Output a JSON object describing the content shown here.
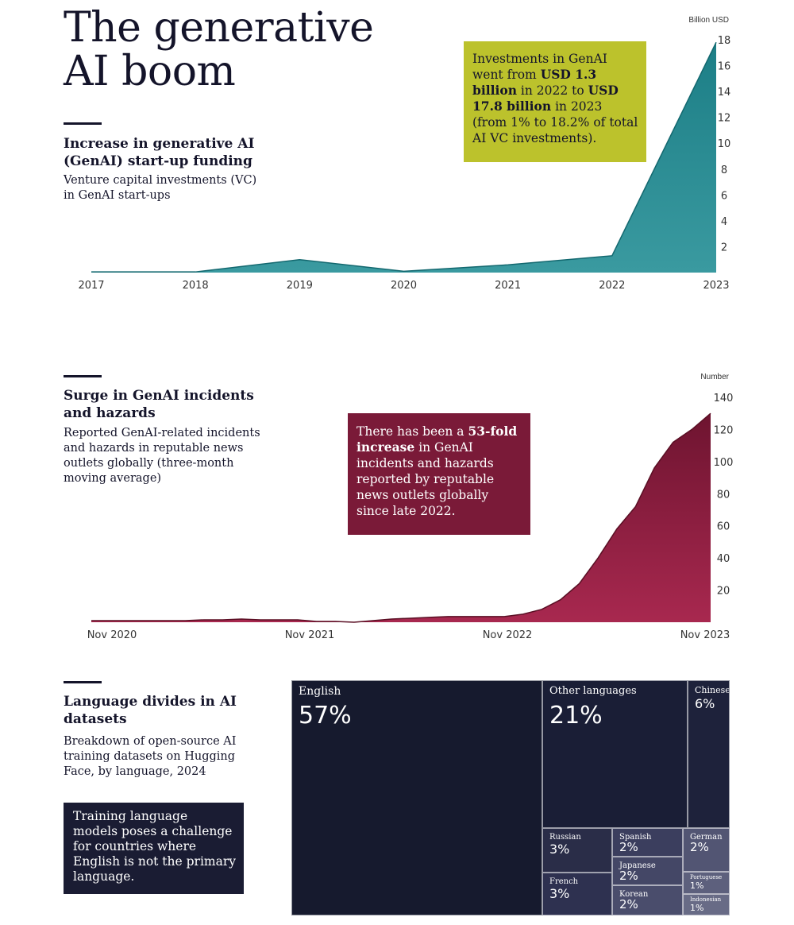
{
  "title_line1": "The generative",
  "title_line2": "AI boom",
  "section1": {
    "title": "Increase in generative AI (GenAI) start-up funding",
    "subtitle": "Venture capital investments (VC) in GenAI start-ups",
    "unit": "Billion USD",
    "callout": {
      "part1": "Investments in GenAI went from ",
      "bold1": "USD 1.3 billion",
      "part2": " in 2022 to ",
      "bold2": "USD 17.8 billion",
      "part3": " in 2023 (from 1% to 18.2% of total AI VC investments).",
      "color": "#bcc22c"
    }
  },
  "section2": {
    "title": "Surge in GenAI incidents and hazards",
    "subtitle": "Reported GenAI-related incidents and hazards in reputable news outlets globally (three-month moving average)",
    "unit": "Number",
    "callout": {
      "part1": "There has been a ",
      "bold1": "53-fold increase",
      "part2": " in GenAI incidents and hazards reported by reputable news outlets globally since late 2022.",
      "color": "#7a1a38"
    }
  },
  "section3": {
    "title": "Language divides in AI datasets",
    "subtitle": "Breakdown of open-source AI training datasets on Hugging Face, by language, 2024",
    "callout": "Training language models poses a challenge for countries where English is not the primary language.",
    "callout_color": "#1a1c33"
  },
  "chart_data": [
    {
      "type": "area",
      "ylabel": "Billion USD",
      "x": [
        "2017",
        "2018",
        "2019",
        "2020",
        "2021",
        "2022",
        "2023"
      ],
      "values": [
        0.05,
        0.05,
        1.0,
        0.1,
        0.6,
        1.3,
        17.8
      ],
      "ylim": [
        0,
        18
      ],
      "yticks": [
        2,
        4,
        6,
        8,
        10,
        12,
        14,
        16,
        18
      ],
      "color": "#3a9aa0"
    },
    {
      "type": "area",
      "ylabel": "Number",
      "x_ticks": [
        "Nov 2020",
        "Nov 2021",
        "Nov 2022",
        "Nov 2023"
      ],
      "values": [
        1,
        1,
        1,
        1,
        1,
        1,
        1.5,
        1.5,
        2,
        1.5,
        1.5,
        1.5,
        0.5,
        0.5,
        0,
        1,
        2,
        2.5,
        3,
        3.5,
        3.5,
        3.5,
        3.5,
        5,
        8,
        14,
        24,
        40,
        58,
        72,
        96,
        112,
        120,
        130
      ],
      "ylim": [
        0,
        140
      ],
      "yticks": [
        20,
        40,
        60,
        80,
        100,
        120,
        140
      ],
      "color": "#a8284f"
    },
    {
      "type": "treemap",
      "items": [
        {
          "label": "English",
          "value": "57%"
        },
        {
          "label": "Other languages",
          "value": "21%"
        },
        {
          "label": "Chinese",
          "value": "6%"
        },
        {
          "label": "Russian",
          "value": "3%"
        },
        {
          "label": "French",
          "value": "3%"
        },
        {
          "label": "Spanish",
          "value": "2%"
        },
        {
          "label": "Japanese",
          "value": "2%"
        },
        {
          "label": "Korean",
          "value": "2%"
        },
        {
          "label": "German",
          "value": "2%"
        },
        {
          "label": "Portuguese",
          "value": "1%"
        },
        {
          "label": "Indonesian",
          "value": "1%"
        }
      ]
    }
  ]
}
